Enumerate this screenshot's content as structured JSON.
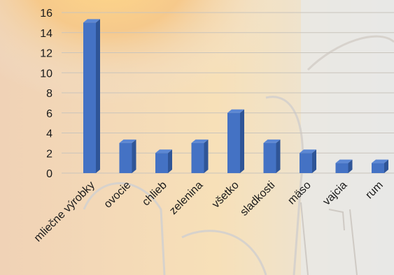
{
  "chart_data": {
    "type": "bar",
    "categories": [
      "mliečne výrobky",
      "ovocie",
      "chlieb",
      "zelenina",
      "všetko",
      "sladkosti",
      "mäso",
      "vajcia",
      "rum"
    ],
    "values": [
      15,
      3,
      2,
      3,
      6,
      3,
      2,
      1,
      1
    ],
    "ylim": [
      0,
      16
    ],
    "yticks": [
      0,
      2,
      4,
      6,
      8,
      10,
      12,
      14,
      16
    ],
    "grid": true,
    "bar_color": "#4472c4",
    "bar_side_color": "#2f5597",
    "bar_top_color": "#5b87d4",
    "gridline_color": "#c9c4bc"
  }
}
